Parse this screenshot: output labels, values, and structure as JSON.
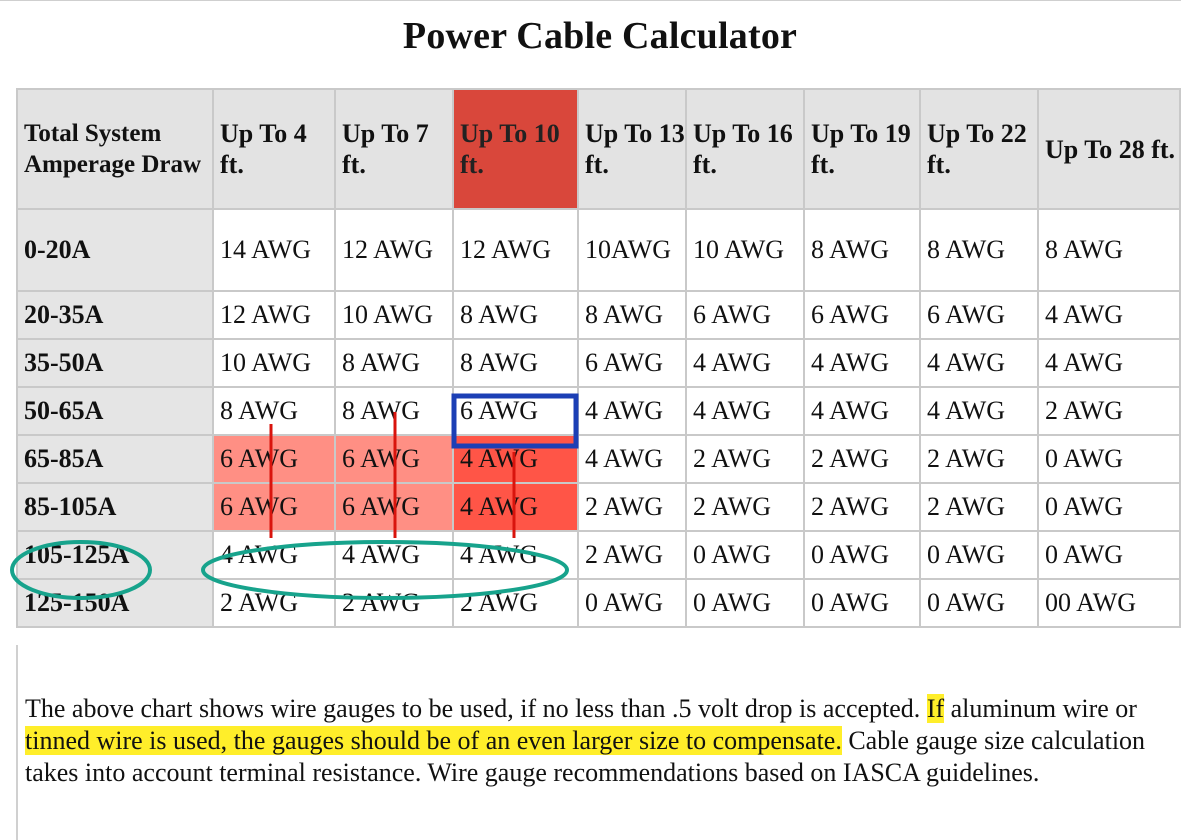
{
  "title": "Power Cable Calculator",
  "table": {
    "corner_header": "Total System Amperage Draw",
    "columns": [
      "Up To 4 ft.",
      "Up To 7 ft.",
      "Up To 10 ft.",
      "Up To 13 ft.",
      "Up To 16 ft.",
      "Up To 19 ft.",
      "Up To 22 ft.",
      "Up To 28 ft."
    ],
    "highlighted_column": "Up To 10 ft.",
    "rows": [
      {
        "label": "0-20A",
        "cells": [
          "14 AWG",
          "12 AWG",
          "12 AWG",
          "10AWG",
          "10 AWG",
          "8 AWG",
          "8 AWG",
          "8 AWG"
        ]
      },
      {
        "label": "20-35A",
        "cells": [
          "12 AWG",
          "10 AWG",
          "8 AWG",
          "8 AWG",
          "6 AWG",
          "6 AWG",
          "6 AWG",
          "4 AWG"
        ]
      },
      {
        "label": "35-50A",
        "cells": [
          "10 AWG",
          "8 AWG",
          "8 AWG",
          "6 AWG",
          "4 AWG",
          "4 AWG",
          "4 AWG",
          "4 AWG"
        ]
      },
      {
        "label": "50-65A",
        "cells": [
          "8 AWG",
          "8 AWG",
          "6 AWG",
          "4 AWG",
          "4 AWG",
          "4 AWG",
          "4 AWG",
          "2 AWG"
        ]
      },
      {
        "label": "65-85A",
        "cells": [
          "6 AWG",
          "6 AWG",
          "4 AWG",
          "4 AWG",
          "2 AWG",
          "2 AWG",
          "2 AWG",
          "0 AWG"
        ]
      },
      {
        "label": "85-105A",
        "cells": [
          "6 AWG",
          "6 AWG",
          "4 AWG",
          "2 AWG",
          "2 AWG",
          "2 AWG",
          "2 AWG",
          "0 AWG"
        ]
      },
      {
        "label": "105-125A",
        "cells": [
          "4 AWG",
          "4 AWG",
          "4 AWG",
          "2 AWG",
          "0 AWG",
          "0 AWG",
          "0 AWG",
          "0 AWG"
        ]
      },
      {
        "label": "125-150A",
        "cells": [
          "2 AWG",
          "2 AWG",
          "2 AWG",
          "0 AWG",
          "0 AWG",
          "0 AWG",
          "0 AWG",
          "00 AWG"
        ]
      }
    ]
  },
  "note": {
    "part1": "The above chart shows wire gauges to be used, if no less than .5 volt drop is accepted. ",
    "highlight1": "If",
    "part2": " aluminum wire or ",
    "highlight2": "tinned wire is used, the gauges should be of an even larger size to compensate.",
    "part3": " Cable gauge size calculation takes into account terminal resistance. Wire gauge recommendations based on IASCA guidelines."
  },
  "colors": {
    "header_highlight": "#d9473b",
    "row_pink_label": "#ee7b73",
    "row_pink_light": "#ff8f84",
    "row_pink_dark": "#ff5547",
    "row_purple_label": "#a48cbf",
    "text_highlight": "#ffee2a",
    "annotation_blue": "#1c3fb5",
    "annotation_teal": "#17a38c",
    "annotation_red": "#d9140d"
  },
  "annotations": {
    "blue_box": "6 AWG",
    "teal_ellipses": [
      "105-125A",
      "4 AWG 4 AWG 4 AWG"
    ],
    "red_lines": 3
  }
}
